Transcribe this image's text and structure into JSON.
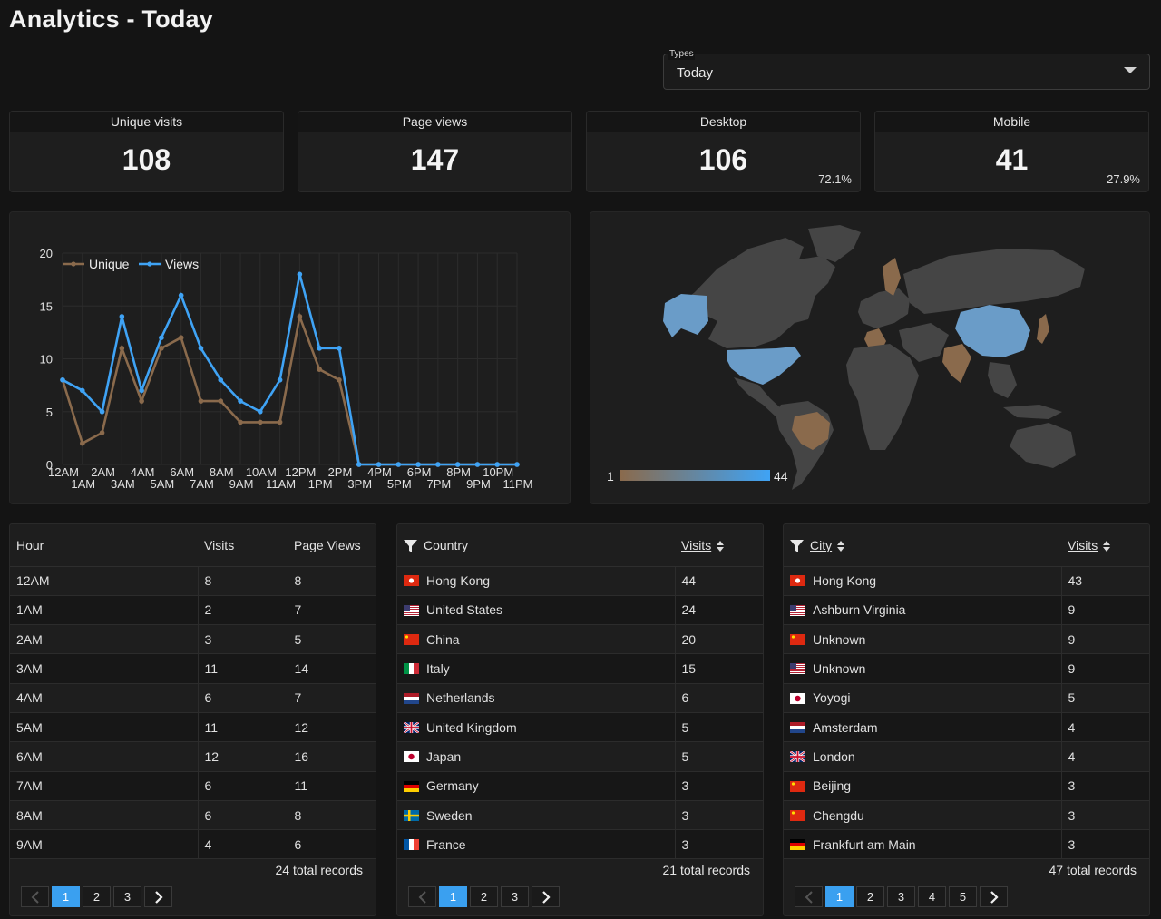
{
  "page": {
    "title": "Analytics - Today"
  },
  "types_select": {
    "label": "Types",
    "value": "Today"
  },
  "stats": [
    {
      "title": "Unique visits",
      "value": "108",
      "pct": ""
    },
    {
      "title": "Page views",
      "value": "147",
      "pct": ""
    },
    {
      "title": "Desktop",
      "value": "106",
      "pct": "72.1%"
    },
    {
      "title": "Mobile",
      "value": "41",
      "pct": "27.9%"
    }
  ],
  "chart_data": {
    "type": "line",
    "categories": [
      "12AM",
      "1AM",
      "2AM",
      "3AM",
      "4AM",
      "5AM",
      "6AM",
      "7AM",
      "8AM",
      "9AM",
      "10AM",
      "11AM",
      "12PM",
      "1PM",
      "2PM",
      "3PM",
      "4PM",
      "5PM",
      "6PM",
      "7PM",
      "8PM",
      "9PM",
      "10PM",
      "11PM"
    ],
    "series": [
      {
        "name": "Unique",
        "color": "#8a6a4c",
        "values": [
          8,
          2,
          3,
          11,
          6,
          11,
          12,
          6,
          6,
          4,
          4,
          4,
          14,
          9,
          8,
          0,
          0,
          0,
          0,
          0,
          0,
          0,
          0,
          0
        ]
      },
      {
        "name": "Views",
        "color": "#3fa3f5",
        "values": [
          8,
          7,
          5,
          14,
          7,
          12,
          16,
          11,
          8,
          6,
          5,
          8,
          18,
          11,
          11,
          0,
          0,
          0,
          0,
          0,
          0,
          0,
          0,
          0
        ]
      }
    ],
    "ylim": [
      0,
      20
    ],
    "yticks": [
      0,
      5,
      10,
      15,
      20
    ],
    "legend": "top-left",
    "grid": true,
    "title": "",
    "xlabel": "",
    "ylabel": ""
  },
  "map": {
    "legend_min": "1",
    "legend_max": "44",
    "low_color": "#8a6a4c",
    "high_color": "#3fa3f5",
    "base_color": "#454545"
  },
  "hour_table": {
    "headers": [
      "Hour",
      "Visits",
      "Page Views"
    ],
    "rows": [
      [
        "12AM",
        "8",
        "8"
      ],
      [
        "1AM",
        "2",
        "7"
      ],
      [
        "2AM",
        "3",
        "5"
      ],
      [
        "3AM",
        "11",
        "14"
      ],
      [
        "4AM",
        "6",
        "7"
      ],
      [
        "5AM",
        "11",
        "12"
      ],
      [
        "6AM",
        "12",
        "16"
      ],
      [
        "7AM",
        "6",
        "11"
      ],
      [
        "8AM",
        "6",
        "8"
      ],
      [
        "9AM",
        "4",
        "6"
      ]
    ],
    "records": "24 total records",
    "pages": [
      "1",
      "2",
      "3"
    ],
    "active_page": "1"
  },
  "country_table": {
    "headers": [
      "Country",
      "Visits"
    ],
    "rows": [
      {
        "flag": "hk",
        "name": "Hong Kong",
        "visits": "44"
      },
      {
        "flag": "us",
        "name": "United States",
        "visits": "24"
      },
      {
        "flag": "cn",
        "name": "China",
        "visits": "20"
      },
      {
        "flag": "it",
        "name": "Italy",
        "visits": "15"
      },
      {
        "flag": "nl",
        "name": "Netherlands",
        "visits": "6"
      },
      {
        "flag": "gb",
        "name": "United Kingdom",
        "visits": "5"
      },
      {
        "flag": "jp",
        "name": "Japan",
        "visits": "5"
      },
      {
        "flag": "de",
        "name": "Germany",
        "visits": "3"
      },
      {
        "flag": "se",
        "name": "Sweden",
        "visits": "3"
      },
      {
        "flag": "fr",
        "name": "France",
        "visits": "3"
      }
    ],
    "records": "21 total records",
    "pages": [
      "1",
      "2",
      "3"
    ],
    "active_page": "1"
  },
  "city_table": {
    "headers": [
      "City",
      "Visits"
    ],
    "rows": [
      {
        "flag": "hk",
        "name": "Hong Kong",
        "visits": "43"
      },
      {
        "flag": "us",
        "name": "Ashburn Virginia",
        "visits": "9"
      },
      {
        "flag": "cn",
        "name": "Unknown",
        "visits": "9"
      },
      {
        "flag": "us",
        "name": "Unknown",
        "visits": "9"
      },
      {
        "flag": "jp",
        "name": "Yoyogi",
        "visits": "5"
      },
      {
        "flag": "nl",
        "name": "Amsterdam",
        "visits": "4"
      },
      {
        "flag": "gb",
        "name": "London",
        "visits": "4"
      },
      {
        "flag": "cn",
        "name": "Beijing",
        "visits": "3"
      },
      {
        "flag": "cn",
        "name": "Chengdu",
        "visits": "3"
      },
      {
        "flag": "de",
        "name": "Frankfurt am Main",
        "visits": "3"
      }
    ],
    "records": "47 total records",
    "pages": [
      "1",
      "2",
      "3",
      "4",
      "5"
    ],
    "active_page": "1"
  }
}
